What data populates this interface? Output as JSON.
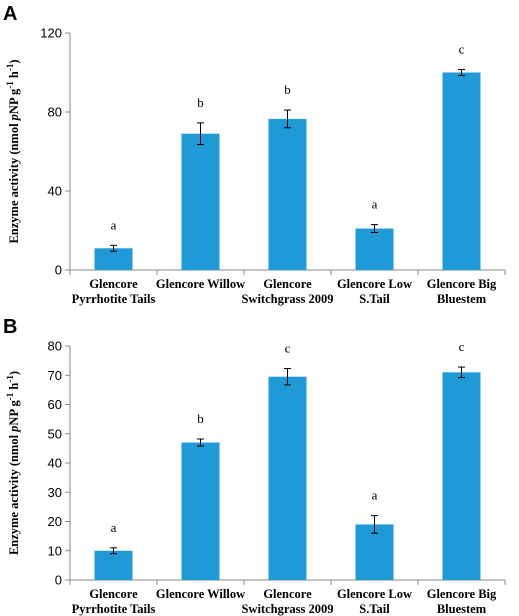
{
  "chart_data": [
    {
      "type": "bar",
      "panel": "A",
      "categories": [
        [
          "Glencore",
          "Pyrrhotite Tails"
        ],
        [
          "Glencore Willow"
        ],
        [
          "Glencore",
          "Switchgrass 2009"
        ],
        [
          "Glencore Low",
          "S.Tail"
        ],
        [
          "Glencore Big",
          "Bluestem"
        ]
      ],
      "values": [
        11,
        69,
        76.5,
        21,
        100
      ],
      "errors": [
        1.5,
        5.5,
        4.5,
        2.0,
        1.5
      ],
      "significance": [
        "a",
        "b",
        "b",
        "a",
        "c"
      ],
      "ylabel": {
        "prefix": "Enzyme activity (nmol ",
        "italic": "p",
        "middle": "NP g",
        "sup1": "-1",
        "space": " h",
        "sup2": "-1",
        "suffix": ")"
      },
      "ylim": [
        0,
        120
      ],
      "yticks": [
        0,
        40,
        80,
        120
      ],
      "color": "#1f9ad6"
    },
    {
      "type": "bar",
      "panel": "B",
      "categories": [
        [
          "Glencore",
          "Pyrrhotite Tails"
        ],
        [
          "Glencore Willow"
        ],
        [
          "Glencore",
          "Switchgrass 2009"
        ],
        [
          "Glencore Low",
          "S.Tail"
        ],
        [
          "Glencore Big",
          "Bluestem"
        ]
      ],
      "values": [
        10,
        47,
        69.5,
        19,
        71
      ],
      "errors": [
        1.0,
        1.2,
        2.8,
        3.0,
        1.8
      ],
      "significance": [
        "a",
        "b",
        "c",
        "a",
        "c"
      ],
      "ylabel": {
        "prefix": "Enzyme activity (nmol ",
        "italic": "p",
        "middle": "NP g",
        "sup1": "-1",
        "space": " h",
        "sup2": "-1",
        "suffix": ")"
      },
      "ylim": [
        0,
        80
      ],
      "yticks": [
        0,
        10,
        20,
        30,
        40,
        50,
        60,
        70,
        80
      ],
      "color": "#1f9ad6"
    }
  ]
}
